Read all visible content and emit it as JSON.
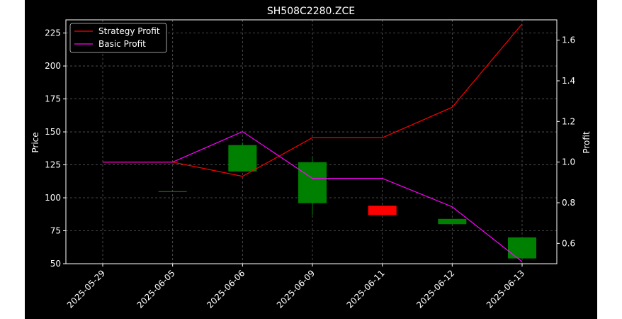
{
  "chart_data": {
    "type": "candlestick",
    "title": "SH508C2280.ZCE",
    "ylabel_left": "Price",
    "ylabel_right": "Profit",
    "x": [
      "2025-05-29",
      "2025-06-05",
      "2025-06-06",
      "2025-06-09",
      "2025-06-11",
      "2025-06-12",
      "2025-06-13"
    ],
    "ylim_left": [
      50,
      235
    ],
    "ylim_right": [
      0.5,
      1.7
    ],
    "yticks_left": [
      50,
      75,
      100,
      125,
      150,
      175,
      200,
      225
    ],
    "yticks_right": [
      0.6,
      0.8,
      1.0,
      1.2,
      1.4,
      1.6
    ],
    "grid": true,
    "legend_position": "upper-left",
    "candles": [
      {
        "x": "2025-05-29",
        "open": null,
        "high": null,
        "low": null,
        "close": null
      },
      {
        "x": "2025-06-05",
        "open": 105,
        "high": 105,
        "low": 105,
        "close": 105
      },
      {
        "x": "2025-06-06",
        "open": 120,
        "high": 142,
        "low": 120,
        "close": 140
      },
      {
        "x": "2025-06-09",
        "open": 96,
        "high": 131,
        "low": 87,
        "close": 127
      },
      {
        "x": "2025-06-11",
        "open": 94,
        "high": 94,
        "low": 87,
        "close": 87
      },
      {
        "x": "2025-06-12",
        "open": 80,
        "high": 84,
        "low": 80,
        "close": 84
      },
      {
        "x": "2025-06-13",
        "open": 54,
        "high": 70,
        "low": 54,
        "close": 70
      }
    ],
    "series": [
      {
        "name": "Strategy Profit",
        "color": "#ff0000",
        "values": [
          1.0,
          1.0,
          0.93,
          1.12,
          1.12,
          1.27,
          1.68
        ]
      },
      {
        "name": "Basic Profit",
        "color": "#ff00ff",
        "values": [
          1.0,
          1.0,
          1.15,
          0.92,
          0.92,
          0.78,
          0.51
        ]
      }
    ],
    "up_color": "#008000",
    "down_color": "#ff0000"
  }
}
